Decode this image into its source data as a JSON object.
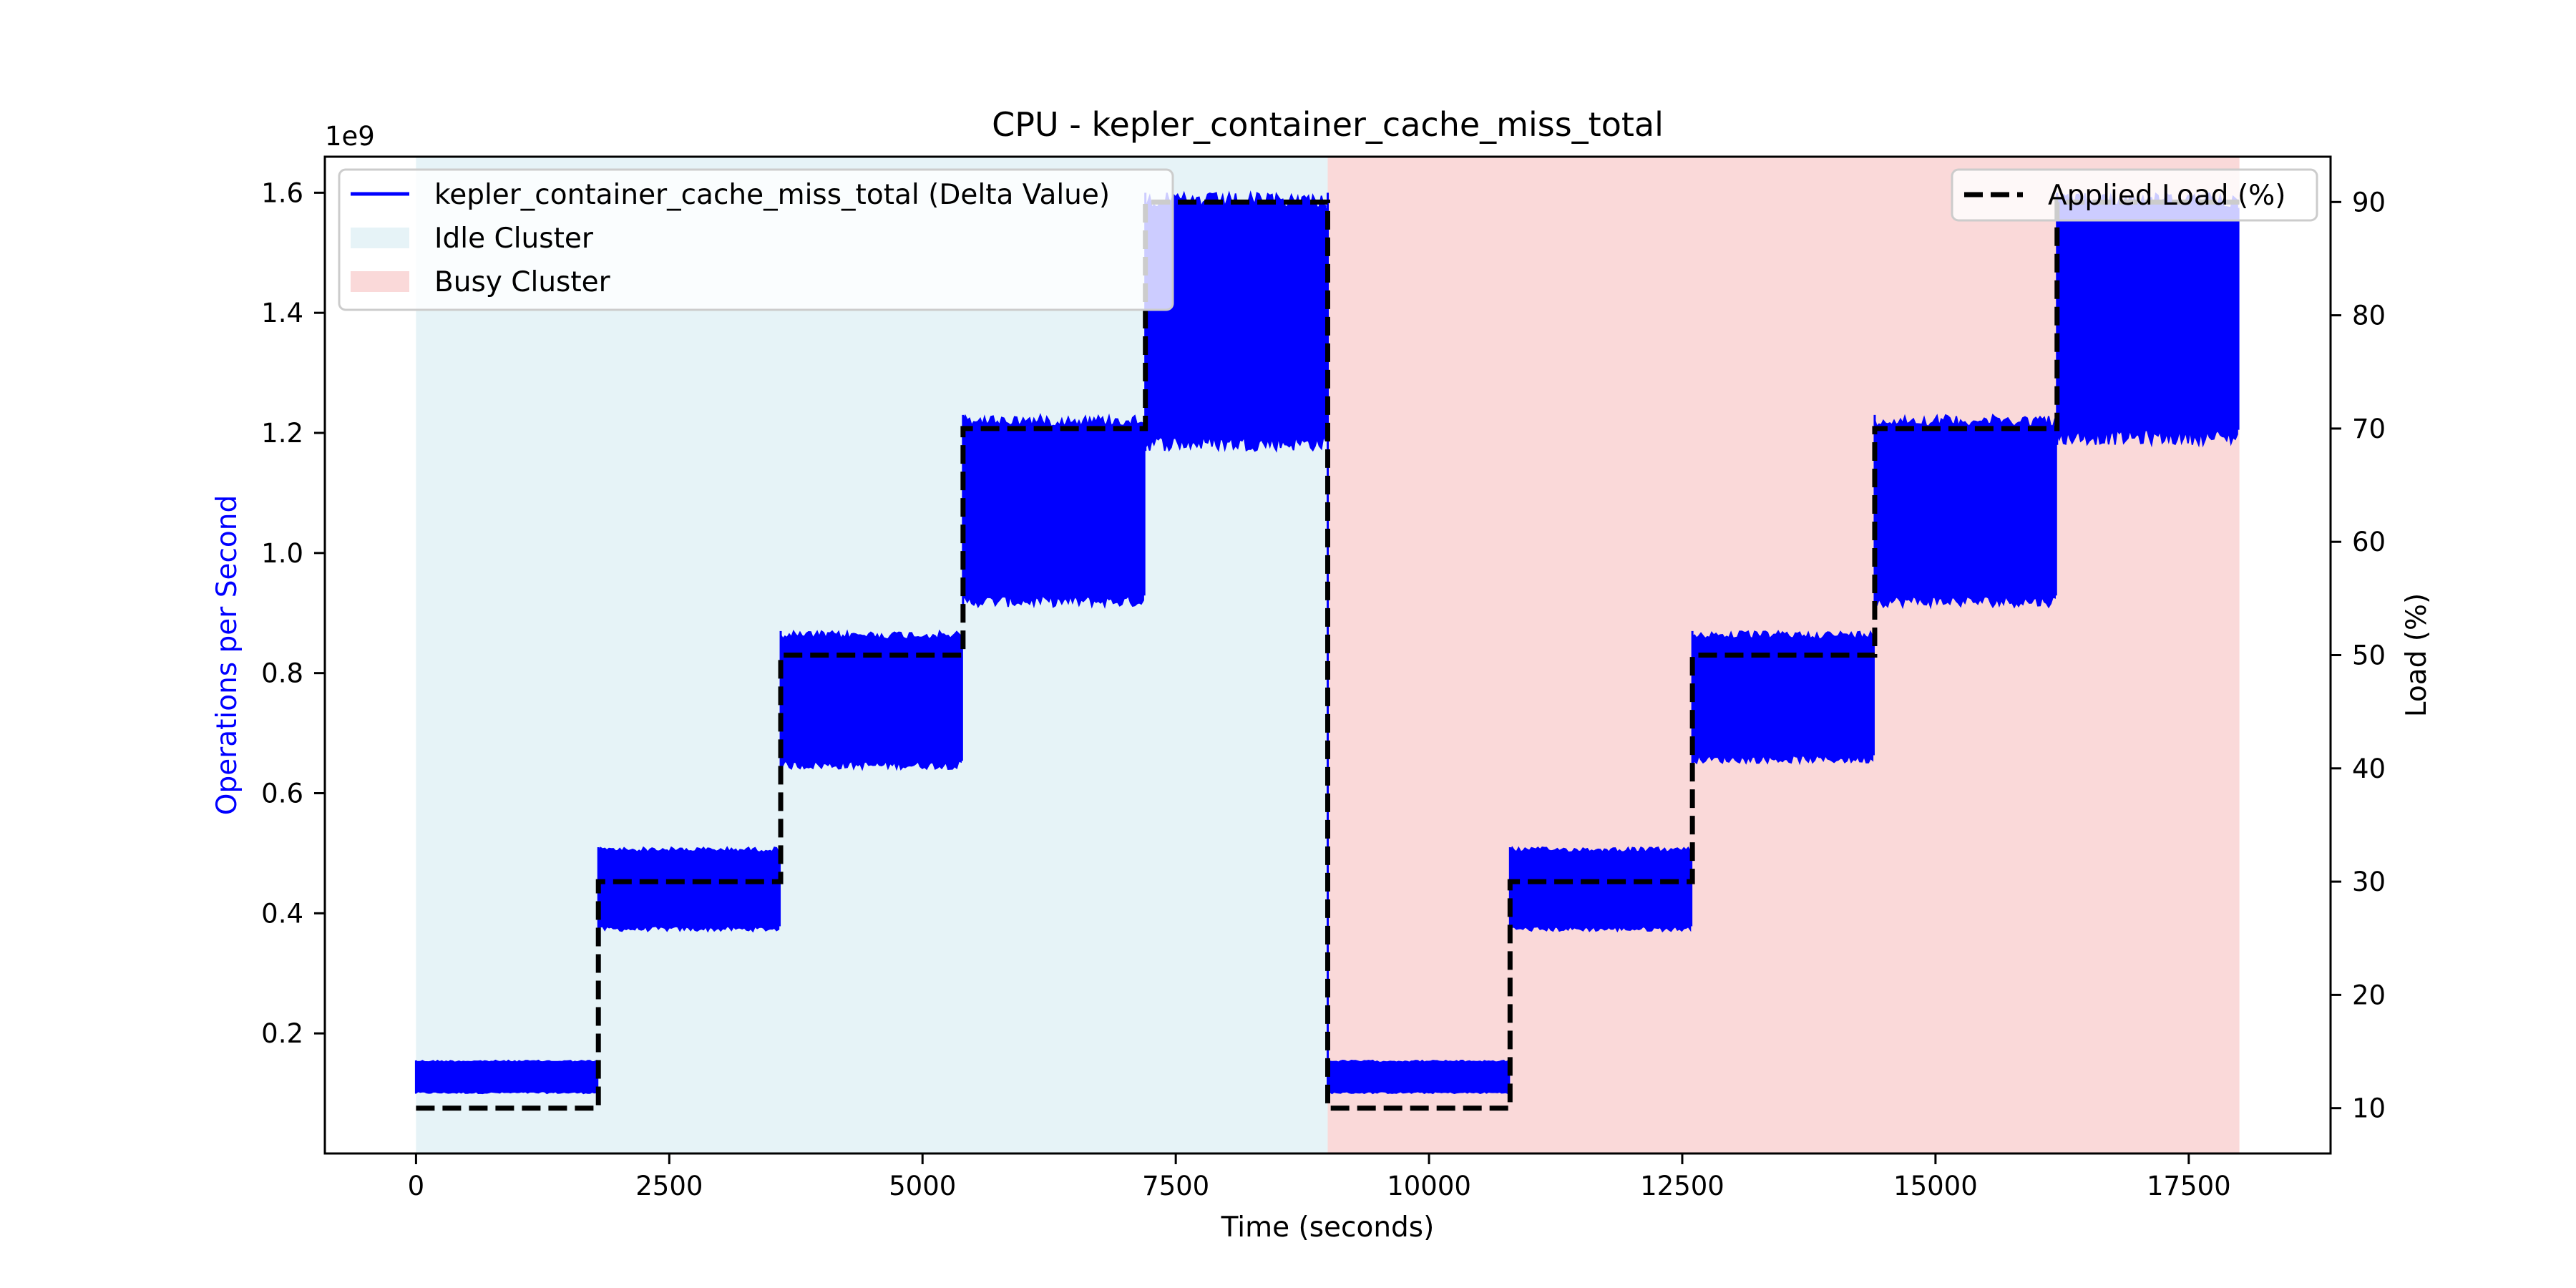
{
  "chart_data": {
    "type": "line",
    "title": "CPU - kepler_container_cache_miss_total",
    "xlabel": "Time (seconds)",
    "ylabel": "Operations per Second",
    "ylabel_color": "#0000ff",
    "y2label": "Load (%)",
    "y_offset_text": "1e9",
    "xlim": [
      -900,
      18900
    ],
    "ylim": [
      0.0,
      1.66
    ],
    "y2lim": [
      6.0,
      94.0
    ],
    "x_ticks": [
      0,
      2500,
      5000,
      7500,
      10000,
      12500,
      15000,
      17500
    ],
    "x_tick_labels": [
      "0",
      "2500",
      "5000",
      "7500",
      "10000",
      "12500",
      "15000",
      "17500"
    ],
    "y_ticks": [
      0.2,
      0.4,
      0.6,
      0.8,
      1.0,
      1.2,
      1.4,
      1.6
    ],
    "y_tick_labels": [
      "0.2",
      "0.4",
      "0.6",
      "0.8",
      "1.0",
      "1.2",
      "1.4",
      "1.6"
    ],
    "y2_ticks": [
      10,
      20,
      30,
      40,
      50,
      60,
      70,
      80,
      90
    ],
    "y2_tick_labels": [
      "10",
      "20",
      "30",
      "40",
      "50",
      "60",
      "70",
      "80",
      "90"
    ],
    "grid": false,
    "regions": [
      {
        "name": "Idle Cluster",
        "x_start": 0,
        "x_end": 9000,
        "color": "#add8e6",
        "alpha": 0.3
      },
      {
        "name": "Busy Cluster",
        "x_start": 9000,
        "x_end": 18000,
        "color": "#f08080",
        "alpha": 0.3
      }
    ],
    "series": [
      {
        "name": "kepler_container_cache_miss_total (Delta Value)",
        "axis": "left",
        "color": "#0000ff",
        "style": "solid",
        "x_step_starts": [
          0,
          1800,
          3600,
          5400,
          7200,
          9000,
          10800,
          12600,
          14400,
          16200
        ],
        "x_end": 18000,
        "band_low": [
          0.1,
          0.37,
          0.64,
          0.91,
          1.17,
          0.1,
          0.37,
          0.65,
          0.91,
          1.18
        ],
        "band_high": [
          0.155,
          0.51,
          0.87,
          1.23,
          1.6,
          0.155,
          0.51,
          0.87,
          1.23,
          1.6
        ]
      },
      {
        "name": "Applied Load (%)",
        "axis": "right",
        "color": "#000000",
        "style": "dashed",
        "x_step_starts": [
          0,
          1800,
          3600,
          5400,
          7200,
          9000,
          10800,
          12600,
          14400,
          16200
        ],
        "x_end": 18000,
        "values": [
          10,
          30,
          50,
          70,
          90,
          10,
          30,
          50,
          70,
          90
        ]
      }
    ],
    "legend_left": {
      "placement": "top-left",
      "entries": [
        {
          "label": "kepler_container_cache_miss_total (Delta Value)",
          "kind": "line",
          "color": "#0000ff"
        },
        {
          "label": "Idle Cluster",
          "kind": "patch",
          "color": "#add8e6"
        },
        {
          "label": "Busy Cluster",
          "kind": "patch",
          "color": "#f08080"
        }
      ]
    },
    "legend_right": {
      "placement": "top-right",
      "entries": [
        {
          "label": "Applied Load (%)",
          "kind": "dashed-line",
          "color": "#000000"
        }
      ]
    }
  }
}
